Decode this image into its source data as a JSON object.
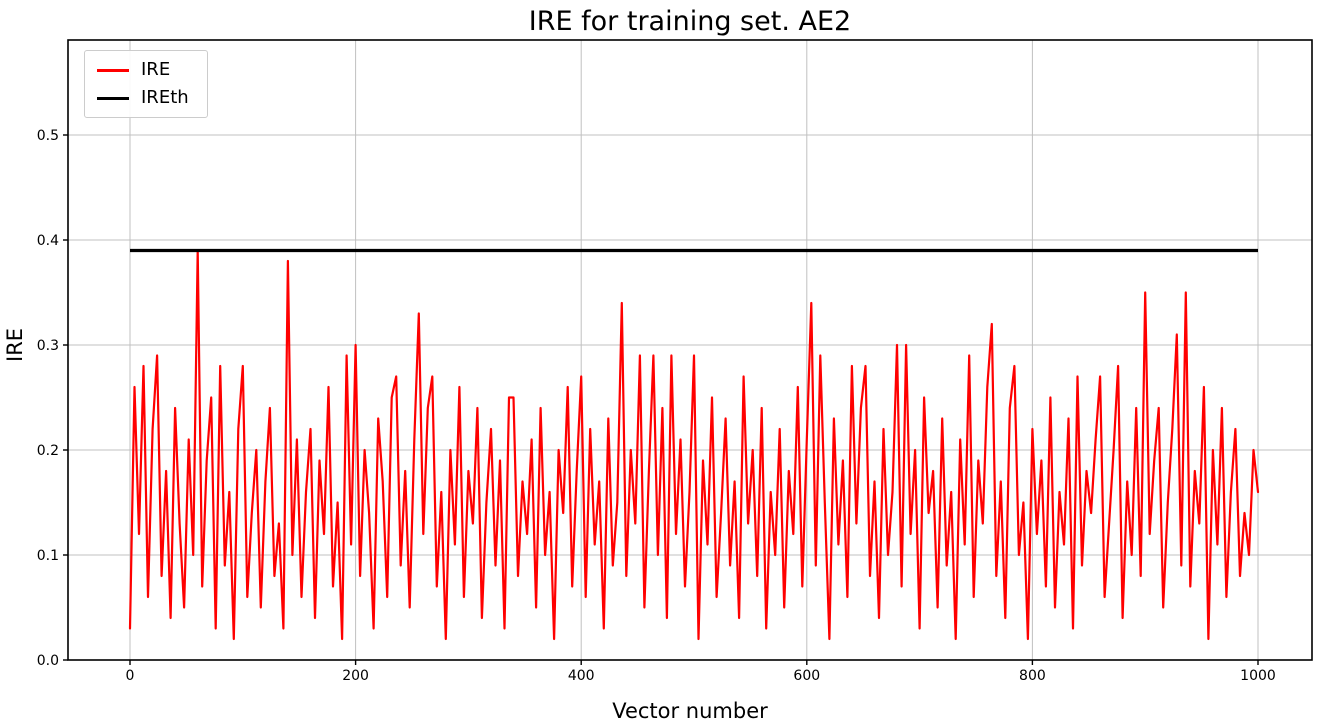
{
  "chart_data": {
    "type": "line",
    "title": "IRE for training set. AE2",
    "xlabel": "Vector number",
    "ylabel": "IRE",
    "xlim": [
      -55,
      1048
    ],
    "ylim": [
      0,
      0.59
    ],
    "xticks": [
      0,
      200,
      400,
      600,
      800,
      1000
    ],
    "yticks": [
      0.0,
      0.1,
      0.2,
      0.3,
      0.4,
      0.5
    ],
    "grid": true,
    "grid_color": "#c0c0c0",
    "spine_color": "#000000",
    "legend": {
      "position": "upper-left",
      "entries": [
        {
          "label": "IRE",
          "color": "#ff0000"
        },
        {
          "label": "IREth",
          "color": "#000000"
        }
      ]
    },
    "threshold": {
      "name": "IREth",
      "value": 0.39,
      "color": "#000000",
      "x_from": 0,
      "x_to": 1000
    },
    "series": [
      {
        "name": "IRE",
        "color": "#ff0000",
        "x_start": 0,
        "x_step": 4,
        "values": [
          0.03,
          0.26,
          0.12,
          0.28,
          0.06,
          0.22,
          0.29,
          0.08,
          0.18,
          0.04,
          0.24,
          0.13,
          0.05,
          0.21,
          0.1,
          0.39,
          0.07,
          0.19,
          0.25,
          0.03,
          0.28,
          0.09,
          0.16,
          0.02,
          0.22,
          0.28,
          0.06,
          0.14,
          0.2,
          0.05,
          0.17,
          0.24,
          0.08,
          0.13,
          0.03,
          0.38,
          0.1,
          0.21,
          0.06,
          0.16,
          0.22,
          0.04,
          0.19,
          0.12,
          0.26,
          0.07,
          0.15,
          0.02,
          0.29,
          0.11,
          0.3,
          0.08,
          0.2,
          0.14,
          0.03,
          0.23,
          0.17,
          0.06,
          0.25,
          0.27,
          0.09,
          0.18,
          0.05,
          0.21,
          0.33,
          0.12,
          0.24,
          0.27,
          0.07,
          0.16,
          0.02,
          0.2,
          0.11,
          0.26,
          0.06,
          0.18,
          0.13,
          0.24,
          0.04,
          0.15,
          0.22,
          0.09,
          0.19,
          0.03,
          0.25,
          0.25,
          0.08,
          0.17,
          0.12,
          0.21,
          0.05,
          0.24,
          0.1,
          0.16,
          0.02,
          0.2,
          0.14,
          0.26,
          0.07,
          0.18,
          0.27,
          0.06,
          0.22,
          0.11,
          0.17,
          0.03,
          0.23,
          0.09,
          0.15,
          0.34,
          0.08,
          0.2,
          0.13,
          0.29,
          0.05,
          0.18,
          0.29,
          0.1,
          0.24,
          0.04,
          0.29,
          0.12,
          0.21,
          0.07,
          0.16,
          0.29,
          0.02,
          0.19,
          0.11,
          0.25,
          0.06,
          0.14,
          0.23,
          0.09,
          0.17,
          0.04,
          0.27,
          0.13,
          0.2,
          0.08,
          0.24,
          0.03,
          0.16,
          0.1,
          0.22,
          0.05,
          0.18,
          0.12,
          0.26,
          0.07,
          0.21,
          0.34,
          0.09,
          0.29,
          0.15,
          0.02,
          0.23,
          0.11,
          0.19,
          0.06,
          0.28,
          0.13,
          0.24,
          0.28,
          0.08,
          0.17,
          0.04,
          0.22,
          0.1,
          0.16,
          0.3,
          0.07,
          0.3,
          0.12,
          0.2,
          0.03,
          0.25,
          0.14,
          0.18,
          0.05,
          0.23,
          0.09,
          0.16,
          0.02,
          0.21,
          0.11,
          0.29,
          0.06,
          0.19,
          0.13,
          0.26,
          0.32,
          0.08,
          0.17,
          0.04,
          0.24,
          0.28,
          0.1,
          0.15,
          0.02,
          0.22,
          0.12,
          0.19,
          0.07,
          0.25,
          0.05,
          0.16,
          0.11,
          0.23,
          0.03,
          0.27,
          0.09,
          0.18,
          0.14,
          0.21,
          0.27,
          0.06,
          0.13,
          0.2,
          0.28,
          0.04,
          0.17,
          0.1,
          0.24,
          0.08,
          0.35,
          0.12,
          0.19,
          0.24,
          0.05,
          0.15,
          0.22,
          0.31,
          0.09,
          0.35,
          0.07,
          0.18,
          0.13,
          0.26,
          0.02,
          0.2,
          0.11,
          0.24,
          0.06,
          0.16,
          0.22,
          0.08,
          0.14,
          0.1,
          0.2,
          0.16
        ]
      }
    ]
  }
}
